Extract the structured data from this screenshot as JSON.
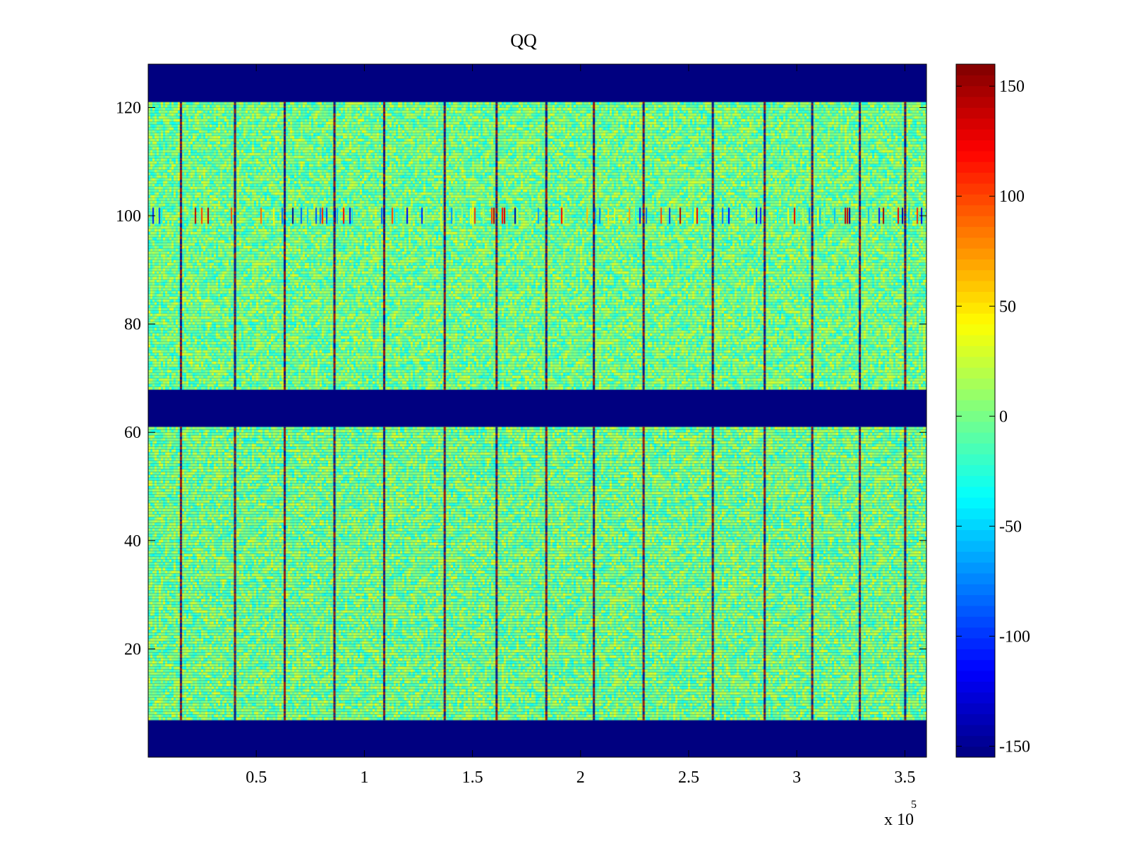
{
  "chart_data": {
    "type": "heatmap",
    "title": "QQ",
    "xlabel": "",
    "ylabel": "",
    "x_exponent_label": "x 10",
    "x_exponent_power": "5",
    "xlim": [
      0,
      360000
    ],
    "ylim": [
      0,
      128
    ],
    "xtick_values": [
      50000,
      100000,
      150000,
      200000,
      250000,
      300000,
      350000
    ],
    "xtick_labels": [
      "0.5",
      "1",
      "1.5",
      "2",
      "2.5",
      "3",
      "3.5"
    ],
    "ytick_values": [
      20,
      40,
      60,
      80,
      100,
      120
    ],
    "ytick_labels": [
      "20",
      "40",
      "60",
      "80",
      "100",
      "120"
    ],
    "colorbar": {
      "colormap": "jet",
      "clim": [
        -155,
        160
      ],
      "tick_values": [
        150,
        100,
        50,
        0,
        -50,
        -100,
        -150
      ],
      "tick_labels": [
        "150",
        "100",
        "50",
        "0",
        "-50",
        "-100",
        "-150"
      ]
    },
    "background_value": -155,
    "noise_value_range": [
      -40,
      40
    ],
    "masked_row_bands": [
      [
        0,
        7
      ],
      [
        61,
        68
      ],
      [
        121,
        128
      ]
    ],
    "data_row_bands": [
      [
        7,
        61
      ],
      [
        68,
        121
      ]
    ],
    "stripe_x_positions": [
      15000,
      40000,
      63000,
      86000,
      109000,
      137000,
      161000,
      184000,
      206000,
      229000,
      261000,
      285000,
      307000,
      329000,
      350000
    ],
    "stripe_peak_value": 150,
    "stripe_trough_value": -150,
    "row_100_disturbance_value_range": [
      -150,
      150
    ],
    "grid": false,
    "legend": "none"
  }
}
